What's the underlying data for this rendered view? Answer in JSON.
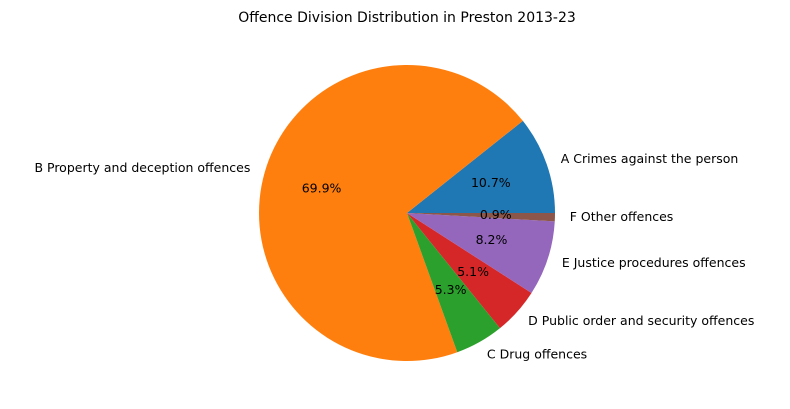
{
  "chart_data": {
    "type": "pie",
    "title": "Offence Division Distribution in Preston 2013-23",
    "slices": [
      {
        "label": "A Crimes against the person",
        "value": 10.7,
        "pct_label": "10.7%",
        "color": "#1f77b4"
      },
      {
        "label": "B Property and deception offences",
        "value": 69.9,
        "pct_label": "69.9%",
        "color": "#ff7f0e"
      },
      {
        "label": "C Drug offences",
        "value": 5.3,
        "pct_label": "5.3%",
        "color": "#2ca02c"
      },
      {
        "label": "D Public order and security offences",
        "value": 5.1,
        "pct_label": "5.1%",
        "color": "#d62728"
      },
      {
        "label": "E Justice procedures offences",
        "value": 8.2,
        "pct_label": "8.2%",
        "color": "#9467bd"
      },
      {
        "label": "F Other offences",
        "value": 0.9,
        "pct_label": "0.9%",
        "color": "#8c564b"
      }
    ],
    "start_angle_deg": 0,
    "direction": "counterclockwise",
    "legend": "none"
  }
}
